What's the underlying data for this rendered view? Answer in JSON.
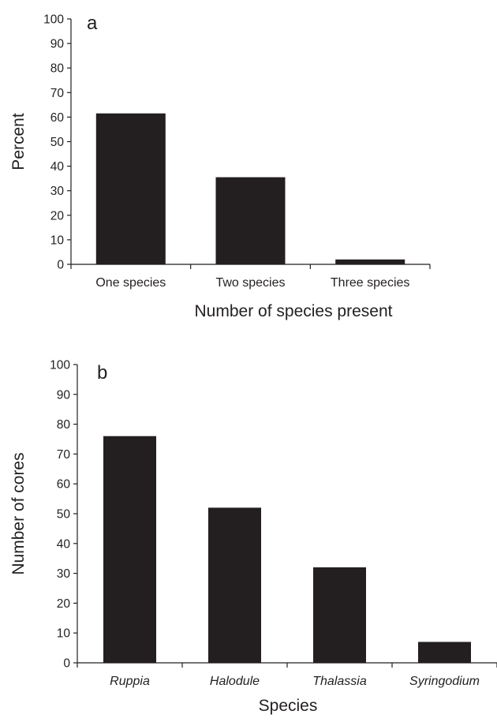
{
  "chart_data": [
    {
      "type": "bar",
      "panel_label": "a",
      "categories": [
        "One species",
        "Two species",
        "Three species"
      ],
      "values": [
        61.5,
        35.5,
        2
      ],
      "xlabel": "Number of species present",
      "ylabel": "Percent",
      "ylim": [
        0,
        100
      ],
      "yticks": [
        0,
        10,
        20,
        30,
        40,
        50,
        60,
        70,
        80,
        90,
        100
      ],
      "category_style": "normal",
      "grid": false,
      "bar_color": "#231f20"
    },
    {
      "type": "bar",
      "panel_label": "b",
      "categories": [
        "Ruppia",
        "Halodule",
        "Thalassia",
        "Syringodium"
      ],
      "values": [
        76,
        52,
        32,
        7
      ],
      "xlabel": "Species",
      "ylabel": "Number of cores",
      "ylim": [
        0,
        100
      ],
      "yticks": [
        0,
        10,
        20,
        30,
        40,
        50,
        60,
        70,
        80,
        90,
        100
      ],
      "category_style": "italic",
      "grid": false,
      "bar_color": "#231f20"
    }
  ]
}
